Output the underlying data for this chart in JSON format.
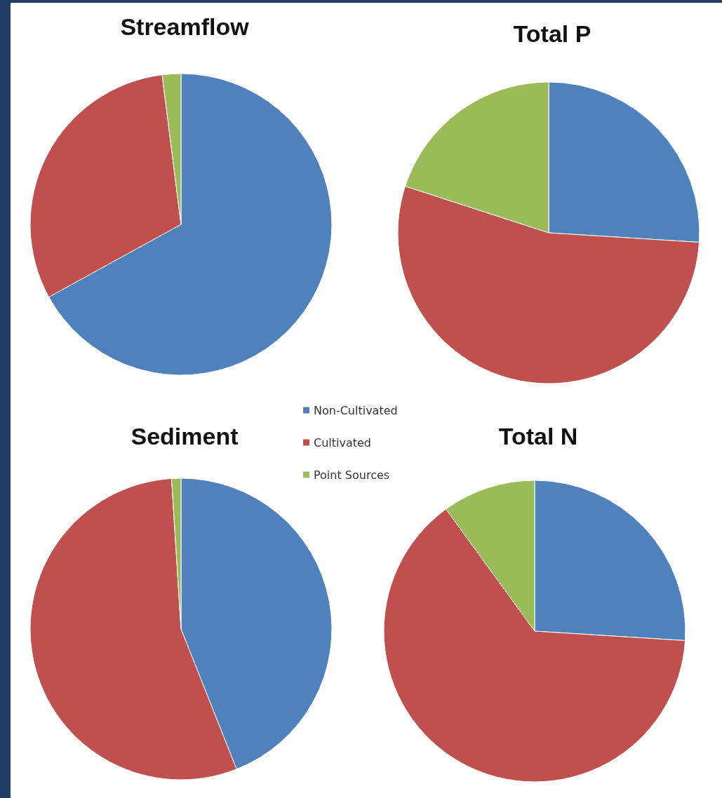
{
  "chart_data": [
    {
      "type": "pie",
      "title": "Streamflow",
      "categories": [
        null,
        null,
        null
      ],
      "values": [
        67,
        31,
        2
      ],
      "colors": [
        "#4f81bd",
        "#c0504d",
        "#9bbb59"
      ],
      "legend": false
    },
    {
      "type": "pie",
      "title": "Total P",
      "categories": [
        null,
        null,
        null
      ],
      "values": [
        26,
        54,
        20
      ],
      "colors": [
        "#4f81bd",
        "#c0504d",
        "#9bbb59"
      ],
      "legend": false
    },
    {
      "type": "pie",
      "title": "Sediment",
      "categories": [
        "Non-Cultivated",
        "Cultivated",
        "Point Sources"
      ],
      "values": [
        44,
        55,
        1
      ],
      "colors": [
        "#4f81bd",
        "#c0504d",
        "#9bbb59"
      ],
      "legend": "top right"
    },
    {
      "type": "pie",
      "title": "Total N",
      "categories": [
        null,
        null,
        null
      ],
      "values": [
        26,
        64,
        10
      ],
      "colors": [
        "#4f81bd",
        "#c0504d",
        "#9bbb59"
      ],
      "legend": false
    }
  ]
}
